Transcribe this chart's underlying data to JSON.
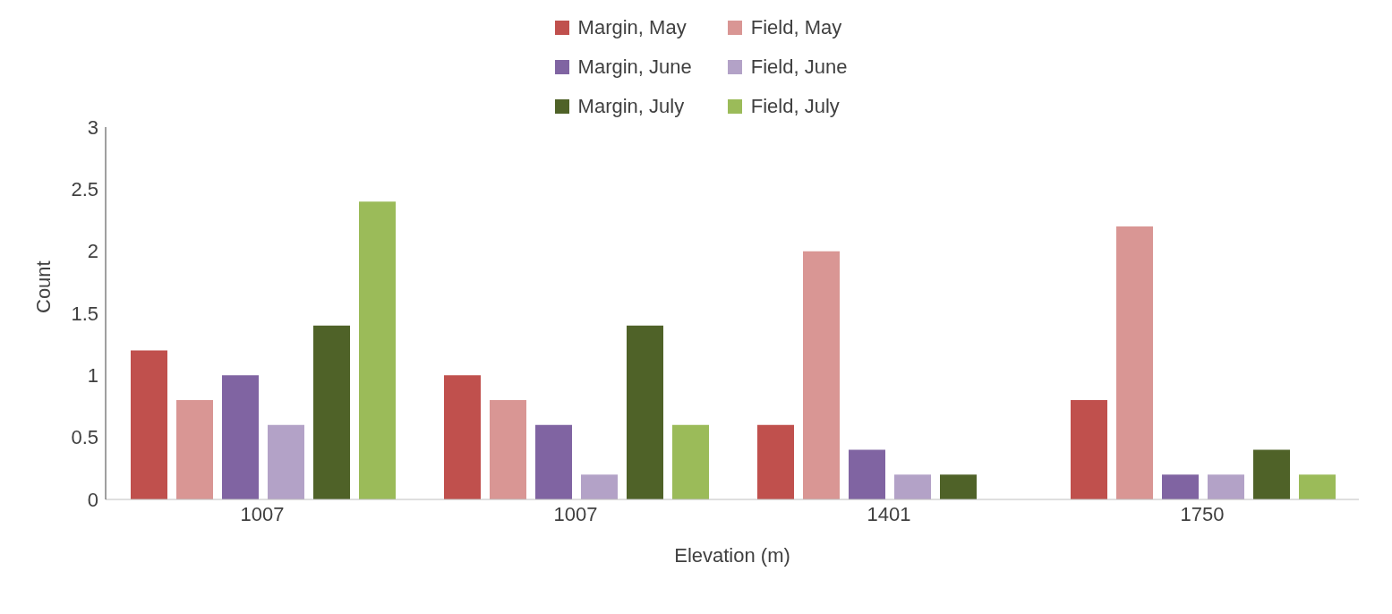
{
  "chart_data": {
    "type": "bar",
    "xlabel": "Elevation (m)",
    "ylabel": "Count",
    "categories": [
      "1007",
      "1007",
      "1401",
      "1750"
    ],
    "series": [
      {
        "name": "Margin, May",
        "color": "#c0504d",
        "values": [
          1.2,
          1.0,
          0.6,
          0.8
        ]
      },
      {
        "name": "Field, May",
        "color": "#d99694",
        "values": [
          0.8,
          0.8,
          2.0,
          2.2
        ]
      },
      {
        "name": "Margin, June",
        "color": "#8064a2",
        "values": [
          1.0,
          0.6,
          0.4,
          0.2
        ]
      },
      {
        "name": "Field, June",
        "color": "#b3a2c7",
        "values": [
          0.6,
          0.2,
          0.2,
          0.2
        ]
      },
      {
        "name": "Margin, July",
        "color": "#4f6228",
        "values": [
          1.4,
          1.4,
          0.2,
          0.4
        ]
      },
      {
        "name": "Field, July",
        "color": "#9bbb59",
        "values": [
          2.4,
          0.6,
          0,
          0.2
        ]
      }
    ],
    "ylim": [
      0,
      3
    ],
    "yticks": [
      0,
      0.5,
      1,
      1.5,
      2,
      2.5,
      3
    ],
    "grid": false,
    "legend": "top"
  }
}
